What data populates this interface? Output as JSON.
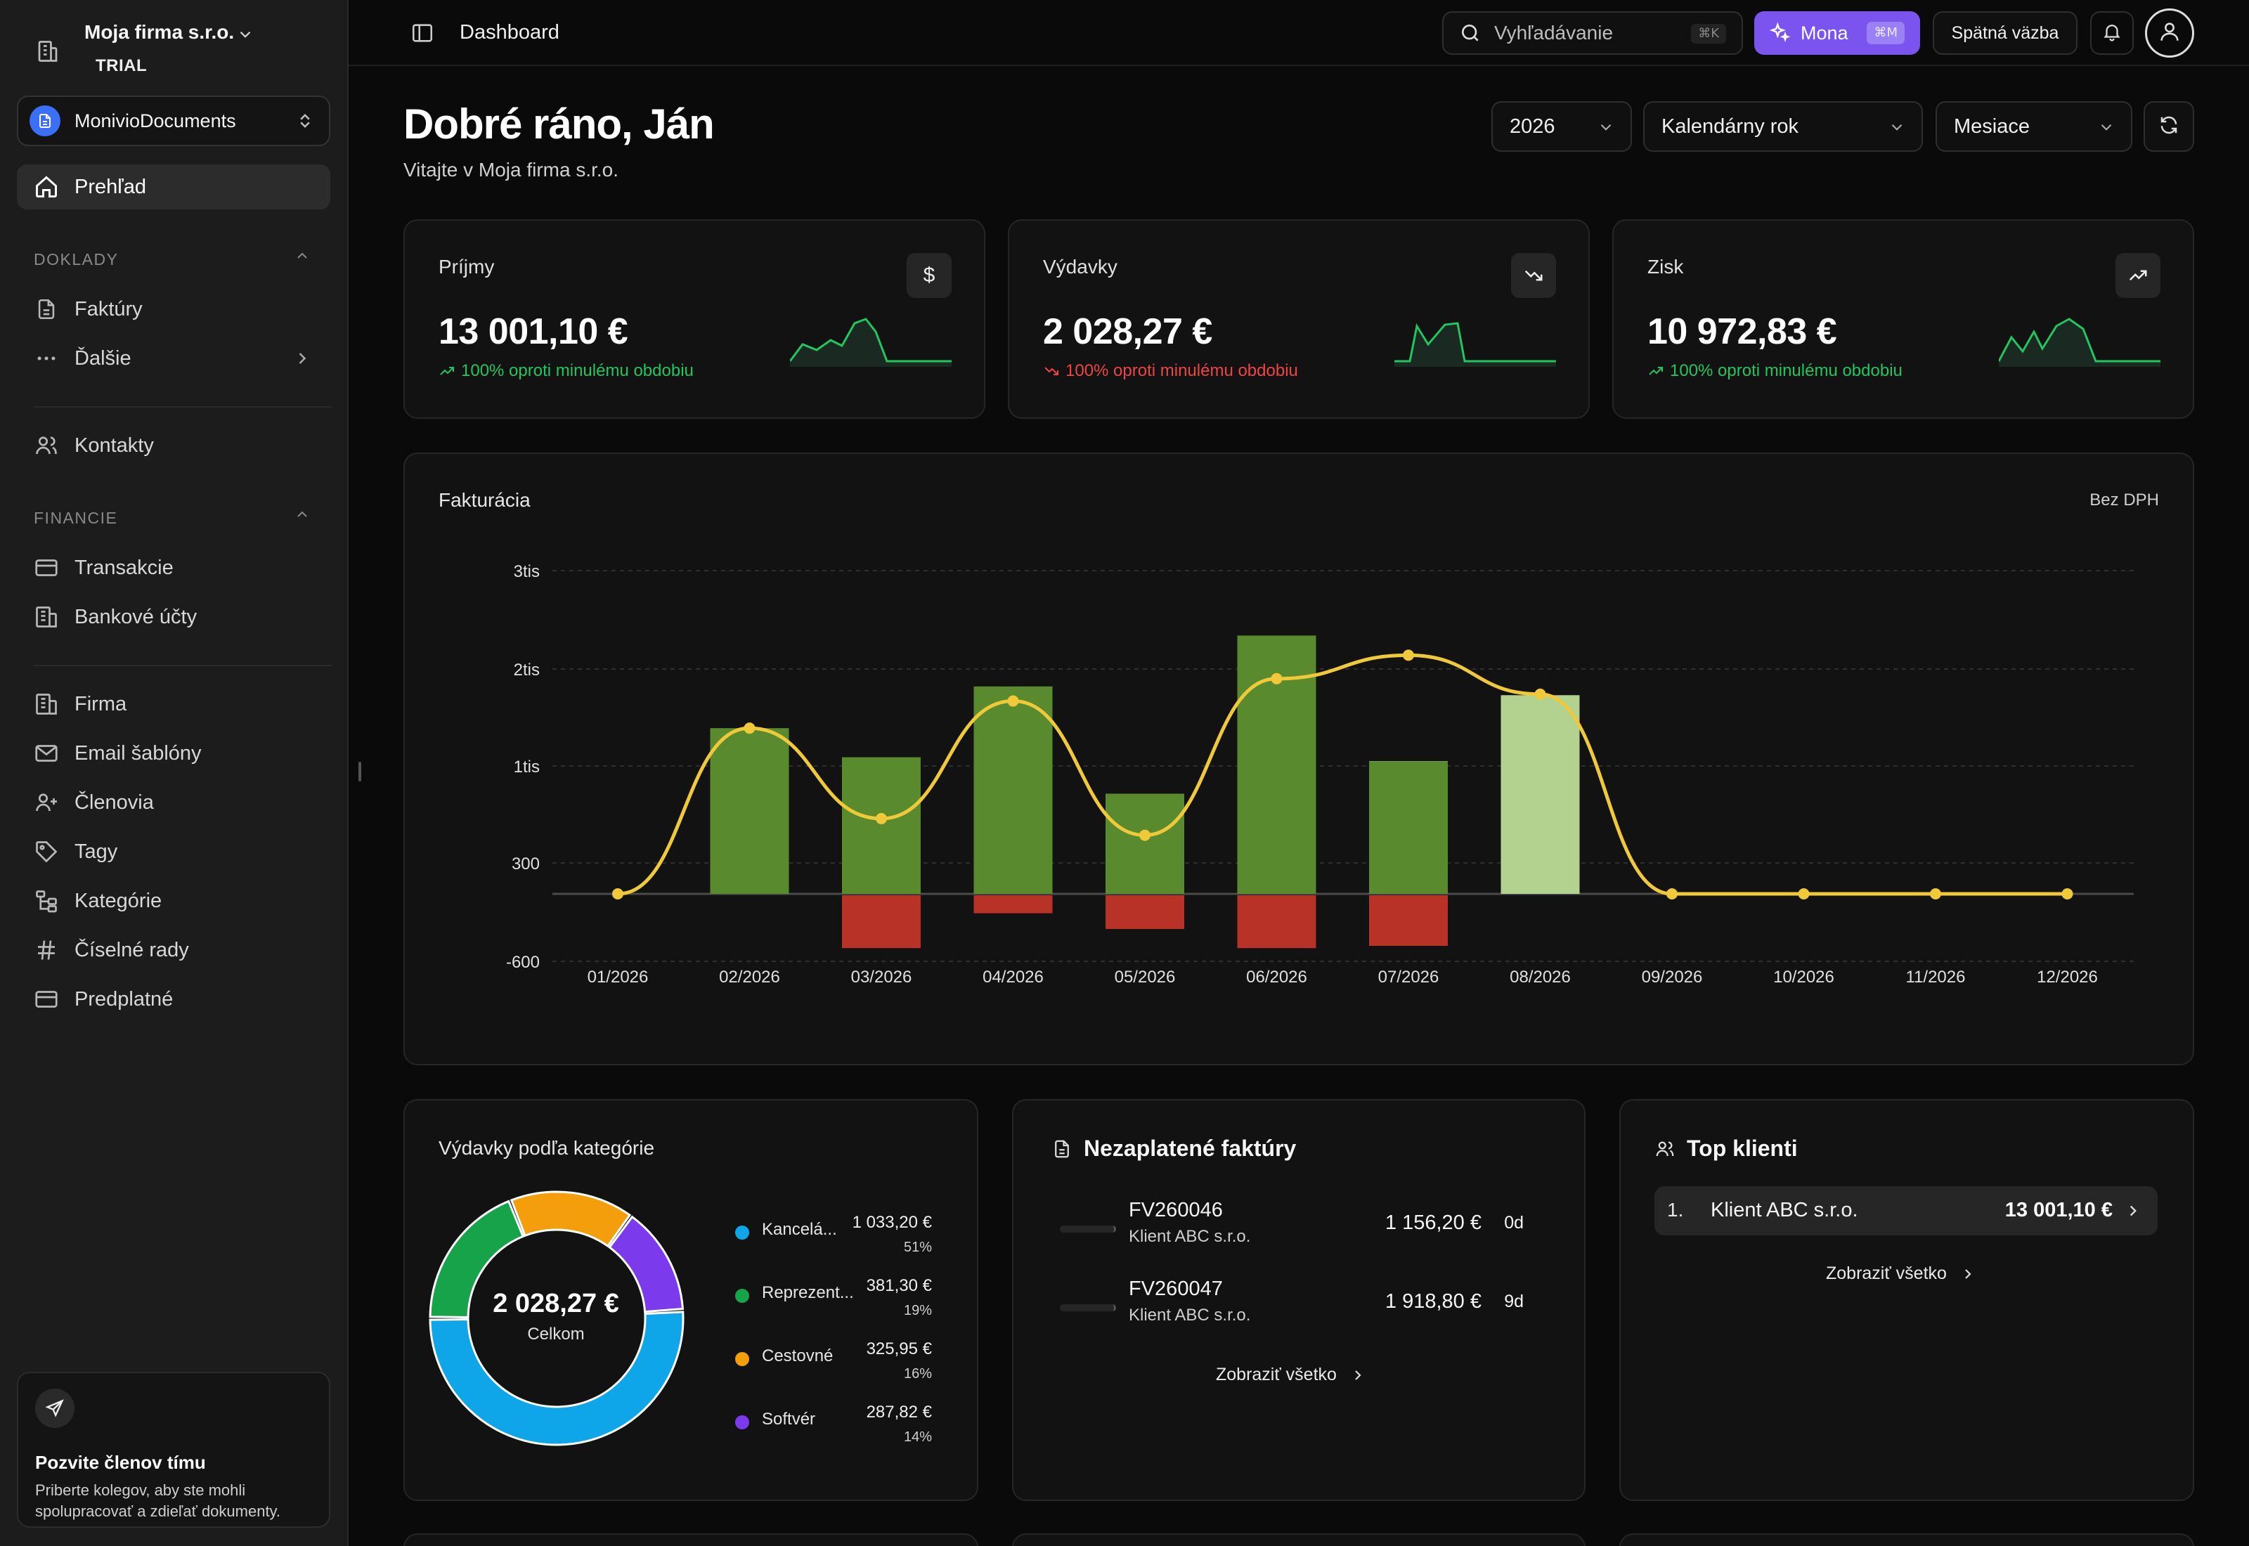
{
  "sidebar": {
    "company": {
      "name": "Moja firma s.r.o.",
      "plan": "TRIAL"
    },
    "workspace": {
      "label": "MonivioDocuments"
    },
    "overview": {
      "label": "Prehľad"
    },
    "sections": {
      "doklady": {
        "label": "DOKLADY"
      },
      "financie": {
        "label": "FINANCIE"
      }
    },
    "items": {
      "faktury": "Faktúry",
      "dalsie": "Ďalšie",
      "kontakty": "Kontakty",
      "transakcie": "Transakcie",
      "bankove_ucty": "Bankové účty",
      "firma": "Firma",
      "email_sablony": "Email šablóny",
      "clenovia": "Členovia",
      "tagy": "Tagy",
      "kategorie": "Kategórie",
      "ciselne_rady": "Číselné rady",
      "predplatne": "Predplatné"
    },
    "invite": {
      "title": "Pozvite členov tímu",
      "text": "Priberte kolegov, aby ste mohli spolupracovať a zdieľať dokumenty."
    }
  },
  "topbar": {
    "title": "Dashboard",
    "search": {
      "placeholder": "Vyhľadávanie",
      "shortcut": "⌘K"
    },
    "mona": {
      "label": "Mona",
      "shortcut": "⌘M"
    },
    "feedback": "Spätná väzba"
  },
  "header": {
    "greeting": "Dobré ráno, Ján",
    "subtitle": "Vitajte v Moja firma s.r.o.",
    "filters": {
      "year": "2026",
      "period": "Kalendárny rok",
      "granularity": "Mesiace"
    }
  },
  "stats": [
    {
      "title": "Príjmy",
      "icon": "dollar-icon",
      "value": "13 001,10 €",
      "change": "100% oproti minulému obdobiu",
      "trend": "up",
      "color": "#22c55e"
    },
    {
      "title": "Výdavky",
      "icon": "trending-down-icon",
      "value": "2 028,27 €",
      "change": "100% oproti minulému obdobiu",
      "trend": "down",
      "color": "#ef4444"
    },
    {
      "title": "Zisk",
      "icon": "trending-up-icon",
      "value": "10 972,83 €",
      "change": "100% oproti minulému obdobiu",
      "trend": "up",
      "color": "#22c55e"
    }
  ],
  "chart_data": {
    "type": "bar",
    "title": "Fakturácia",
    "note": "Bez DPH",
    "categories": [
      "01/2026",
      "02/2026",
      "03/2026",
      "04/2026",
      "05/2026",
      "06/2026",
      "07/2026",
      "08/2026",
      "09/2026",
      "10/2026",
      "11/2026",
      "12/2026"
    ],
    "y_ticks": [
      -600,
      300,
      1000,
      2000,
      3000
    ],
    "y_tick_labels": [
      "-600",
      "300",
      "1tis",
      "2tis",
      "3tis"
    ],
    "series": [
      {
        "values": [
          0,
          1390,
          1090,
          1820,
          800,
          2340,
          1540,
          0,
          0,
          0,
          0,
          0
        ],
        "color": "#5a8a2e"
      },
      {
        "values": [
          0,
          0,
          0,
          0,
          0,
          0,
          1050,
          1730,
          0,
          0,
          0,
          0
        ],
        "color": "#b3d28f"
      },
      {
        "values": [
          0,
          0,
          -470,
          -160,
          -300,
          -470,
          -450,
          0,
          0,
          0,
          0,
          0
        ],
        "color": "#b83227"
      },
      {
        "type": "line",
        "values": [
          0,
          1390,
          620,
          1670,
          500,
          1900,
          2140,
          1740,
          0,
          0,
          0,
          0
        ],
        "color": "#f0c93a"
      }
    ],
    "colors": {
      "bar_primary": "#5a8a2e",
      "bar_secondary": "#b3d28f",
      "bar_negative": "#b83227",
      "line": "#f0c93a"
    }
  },
  "expenses_by_category": {
    "title": "Výdavky podľa kategórie",
    "total": "2 028,27 €",
    "total_label": "Celkom",
    "items": [
      {
        "name": "Kancelá...",
        "value": "1 033,20 €",
        "pct": "51%",
        "share": 51,
        "color": "#0ea5e9"
      },
      {
        "name": "Reprezent...",
        "value": "381,30 €",
        "pct": "19%",
        "share": 19,
        "color": "#16a34a"
      },
      {
        "name": "Cestovné",
        "value": "325,95 €",
        "pct": "16%",
        "share": 16,
        "color": "#f59e0b"
      },
      {
        "name": "Softvér",
        "value": "287,82 €",
        "pct": "14%",
        "share": 14,
        "color": "#7c3aed"
      }
    ]
  },
  "unpaid_invoices": {
    "title": "Nezaplatené faktúry",
    "items": [
      {
        "number": "FV260046",
        "client": "Klient ABC s.r.o.",
        "amount": "1 156,20 €",
        "days": "0d"
      },
      {
        "number": "FV260047",
        "client": "Klient ABC s.r.o.",
        "amount": "1 918,80 €",
        "days": "9d"
      }
    ],
    "show_all": "Zobraziť všetko"
  },
  "top_clients": {
    "title": "Top klienti",
    "items": [
      {
        "rank": "1.",
        "name": "Klient ABC s.r.o.",
        "amount": "13 001,10 €"
      }
    ],
    "show_all": "Zobraziť všetko"
  }
}
